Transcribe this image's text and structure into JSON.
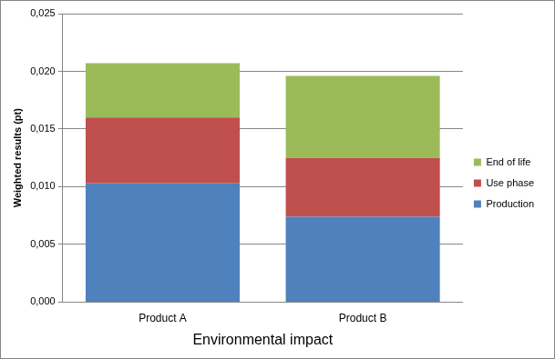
{
  "chart_data": {
    "type": "bar",
    "stacked": true,
    "x_label": "Environmental impact",
    "y_label": "Weighted results (pt)",
    "categories": [
      "Product A",
      "Product B"
    ],
    "series": [
      {
        "name": "Production",
        "color": "#4f81bd",
        "values": [
          0.0103,
          0.0074
        ]
      },
      {
        "name": "Use phase",
        "color": "#c0504d",
        "values": [
          0.0057,
          0.0051
        ]
      },
      {
        "name": "End of life",
        "color": "#9bbb59",
        "values": [
          0.0047,
          0.0071
        ]
      }
    ],
    "ylim": [
      0,
      0.025
    ],
    "yticks": [
      {
        "value": 0,
        "label": "0,000"
      },
      {
        "value": 0.005,
        "label": "0,005"
      },
      {
        "value": 0.01,
        "label": "0,010"
      },
      {
        "value": 0.015,
        "label": "0,015"
      },
      {
        "value": 0.02,
        "label": "0,020"
      },
      {
        "value": 0.025,
        "label": "0,025"
      }
    ],
    "grid": true,
    "legend": "right"
  }
}
